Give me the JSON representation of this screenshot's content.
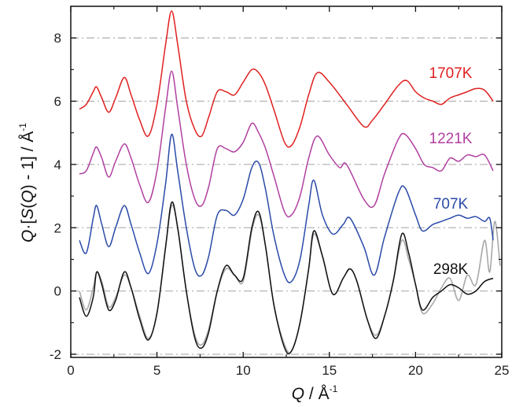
{
  "chart_data": {
    "type": "line",
    "xlabel": {
      "symbol": "Q",
      "sep": " / Å",
      "sup": "-1"
    },
    "ylabel": {
      "q": "Q",
      "dot": "·[",
      "s": "S",
      "paren1": "(",
      "q2": "Q",
      "rest": ") - 1] / Å",
      "sup": "-1"
    },
    "xlim": [
      0,
      25
    ],
    "ylim": [
      -2.1,
      9
    ],
    "xticks": [
      0,
      5,
      10,
      15,
      20,
      25
    ],
    "yticks": [
      -2,
      0,
      2,
      4,
      6,
      8
    ],
    "grid": "horizontal dash-dot at y ticks",
    "colors": {
      "1707K": "#e02020",
      "1221K": "#b040a0",
      "707K": "#2a4aa8",
      "298K": "#111111",
      "reference": "#a8a8a8",
      "grid": "#b5b5b5"
    },
    "series": [
      {
        "name": "1707K",
        "offset": 6,
        "x": [
          0.5,
          0.9,
          1.3,
          1.5,
          1.8,
          2.2,
          2.6,
          3.1,
          3.5,
          4.0,
          4.5,
          5.0,
          5.5,
          5.85,
          6.2,
          6.7,
          7.2,
          7.6,
          8.0,
          8.5,
          9.0,
          9.5,
          10.0,
          10.5,
          10.9,
          11.3,
          11.8,
          12.4,
          12.8,
          13.3,
          13.8,
          14.3,
          15.0,
          16.0,
          17.0,
          17.5,
          18.2,
          19.0,
          19.5,
          20.0,
          20.5,
          21.0,
          21.5,
          22.0,
          22.5,
          23.0,
          23.5,
          24.0,
          24.5
        ],
        "y": [
          -0.25,
          -0.1,
          0.3,
          0.45,
          0.1,
          -0.35,
          0.1,
          0.75,
          0.2,
          -0.6,
          -1.1,
          -0.1,
          1.8,
          2.85,
          1.8,
          0.0,
          -0.9,
          -1.1,
          -0.5,
          0.3,
          0.3,
          0.2,
          0.6,
          1.0,
          0.9,
          0.5,
          -0.3,
          -1.3,
          -1.4,
          -0.8,
          0.2,
          0.9,
          0.6,
          -0.1,
          -0.8,
          -0.6,
          -0.1,
          0.5,
          0.65,
          0.3,
          0.1,
          0.0,
          -0.1,
          0.1,
          0.2,
          0.3,
          0.4,
          0.35,
          0.0
        ]
      },
      {
        "name": "1221K",
        "offset": 4,
        "x": [
          0.5,
          0.9,
          1.3,
          1.5,
          1.8,
          2.2,
          2.6,
          3.1,
          3.5,
          4.0,
          4.5,
          5.0,
          5.5,
          5.85,
          6.2,
          6.7,
          7.2,
          7.6,
          8.0,
          8.5,
          9.0,
          9.5,
          10.0,
          10.5,
          10.9,
          11.3,
          11.8,
          12.4,
          12.8,
          13.3,
          13.8,
          14.3,
          15.0,
          15.6,
          16.0,
          17.0,
          17.6,
          18.2,
          19.0,
          19.4,
          20.0,
          20.5,
          21.0,
          21.5,
          22.0,
          22.5,
          23.0,
          23.5,
          24.0,
          24.5
        ],
        "y": [
          -0.3,
          -0.2,
          0.35,
          0.55,
          0.2,
          -0.4,
          0.1,
          0.65,
          0.2,
          -0.65,
          -1.2,
          -0.2,
          1.8,
          2.95,
          1.8,
          0.0,
          -1.1,
          -1.3,
          -0.7,
          0.5,
          0.5,
          0.4,
          0.7,
          1.3,
          1.0,
          0.5,
          -0.4,
          -1.5,
          -1.6,
          -1.0,
          0.2,
          0.9,
          0.3,
          -0.1,
          0.0,
          -1.1,
          -1.3,
          -0.3,
          0.8,
          0.95,
          0.5,
          0.0,
          -0.1,
          -0.2,
          0.2,
          0.1,
          0.3,
          0.25,
          0.3,
          -0.2
        ]
      },
      {
        "name": "707K",
        "offset": 2,
        "x": [
          0.5,
          0.9,
          1.3,
          1.5,
          1.8,
          2.2,
          2.6,
          3.1,
          3.5,
          4.0,
          4.5,
          5.0,
          5.5,
          5.85,
          6.2,
          6.7,
          7.2,
          7.6,
          8.0,
          8.5,
          9.0,
          9.5,
          10.0,
          10.5,
          10.9,
          11.3,
          11.8,
          12.4,
          12.8,
          13.3,
          13.8,
          14.1,
          14.6,
          15.2,
          15.8,
          16.2,
          17.0,
          17.6,
          18.2,
          19.0,
          19.4,
          20.0,
          20.4,
          21.0,
          21.5,
          22.0,
          22.5,
          23.0,
          23.5,
          24.0,
          24.3,
          24.5
        ],
        "y": [
          -0.4,
          -0.8,
          0.3,
          0.7,
          0.1,
          -0.6,
          0.0,
          0.7,
          0.1,
          -0.8,
          -1.45,
          -0.5,
          1.4,
          2.95,
          1.8,
          0.0,
          -1.3,
          -1.5,
          -0.9,
          0.4,
          0.55,
          0.4,
          0.9,
          1.9,
          2.05,
          1.2,
          -0.3,
          -1.5,
          -1.7,
          -1.0,
          0.7,
          1.5,
          0.4,
          -0.2,
          0.1,
          0.3,
          -0.6,
          -1.5,
          -0.3,
          1.1,
          1.25,
          0.4,
          -0.1,
          0.1,
          0.2,
          0.3,
          0.4,
          0.3,
          0.35,
          0.2,
          0.3,
          -0.4
        ]
      },
      {
        "name": "298K",
        "offset": 0,
        "x": [
          0.5,
          0.9,
          1.3,
          1.5,
          1.8,
          2.2,
          2.6,
          3.1,
          3.5,
          4.0,
          4.5,
          5.0,
          5.5,
          5.85,
          6.2,
          6.7,
          7.2,
          7.6,
          8.0,
          8.5,
          9.0,
          9.5,
          10.0,
          10.5,
          10.9,
          11.3,
          11.8,
          12.4,
          12.8,
          13.3,
          13.8,
          14.1,
          14.6,
          15.2,
          15.8,
          16.2,
          16.6,
          17.2,
          17.7,
          18.2,
          18.7,
          19.2,
          19.6,
          20.0,
          20.4,
          21.0,
          21.5,
          22.0,
          22.5,
          23.0,
          23.5,
          24.0,
          24.5
        ],
        "y": [
          -0.2,
          -0.8,
          -0.2,
          0.6,
          0.2,
          -0.6,
          -0.3,
          0.6,
          0.1,
          -0.9,
          -1.55,
          -0.7,
          1.4,
          2.8,
          2.0,
          0.0,
          -1.5,
          -1.8,
          -1.3,
          0.0,
          0.8,
          0.5,
          0.4,
          2.0,
          2.5,
          1.4,
          -0.5,
          -1.8,
          -1.9,
          -1.0,
          0.7,
          1.9,
          1.1,
          -0.1,
          0.4,
          0.7,
          0.3,
          -0.9,
          -1.5,
          -0.8,
          0.3,
          1.8,
          1.2,
          0.2,
          -0.6,
          -0.2,
          0.0,
          0.2,
          0.1,
          -0.1,
          0.0,
          0.3,
          0.4
        ]
      },
      {
        "name": "",
        "role": "reference",
        "offset": 0,
        "x": [
          0.5,
          0.9,
          1.3,
          1.5,
          1.8,
          2.2,
          2.6,
          3.1,
          3.5,
          4.0,
          4.5,
          5.0,
          5.5,
          5.85,
          6.2,
          6.7,
          7.2,
          7.6,
          8.0,
          8.5,
          9.0,
          9.5,
          10.0,
          10.5,
          10.9,
          11.3,
          11.8,
          12.4,
          12.8,
          13.3,
          13.8,
          14.1,
          14.6,
          15.2,
          15.8,
          16.2,
          16.6,
          17.2,
          17.7,
          18.2,
          18.7,
          19.2,
          19.6,
          20.0,
          20.4,
          21.0,
          21.5,
          22.0,
          22.5,
          23.0,
          23.5,
          24.0,
          24.3,
          24.6,
          24.9
        ],
        "y": [
          0.0,
          -0.6,
          0.1,
          0.6,
          0.3,
          -0.5,
          -0.2,
          0.5,
          0.1,
          -0.8,
          -1.5,
          -0.7,
          1.4,
          2.7,
          2.0,
          0.0,
          -1.4,
          -1.7,
          -1.2,
          0.0,
          0.7,
          0.5,
          0.3,
          1.9,
          2.4,
          1.4,
          -0.5,
          -1.7,
          -1.9,
          -1.0,
          0.7,
          1.8,
          1.1,
          -0.1,
          0.4,
          0.7,
          0.3,
          -0.9,
          -1.4,
          -0.8,
          0.3,
          1.6,
          1.0,
          0.2,
          -0.7,
          -0.4,
          0.1,
          0.4,
          -0.3,
          0.5,
          0.2,
          1.6,
          0.6,
          2.2,
          0.8
        ]
      }
    ]
  }
}
